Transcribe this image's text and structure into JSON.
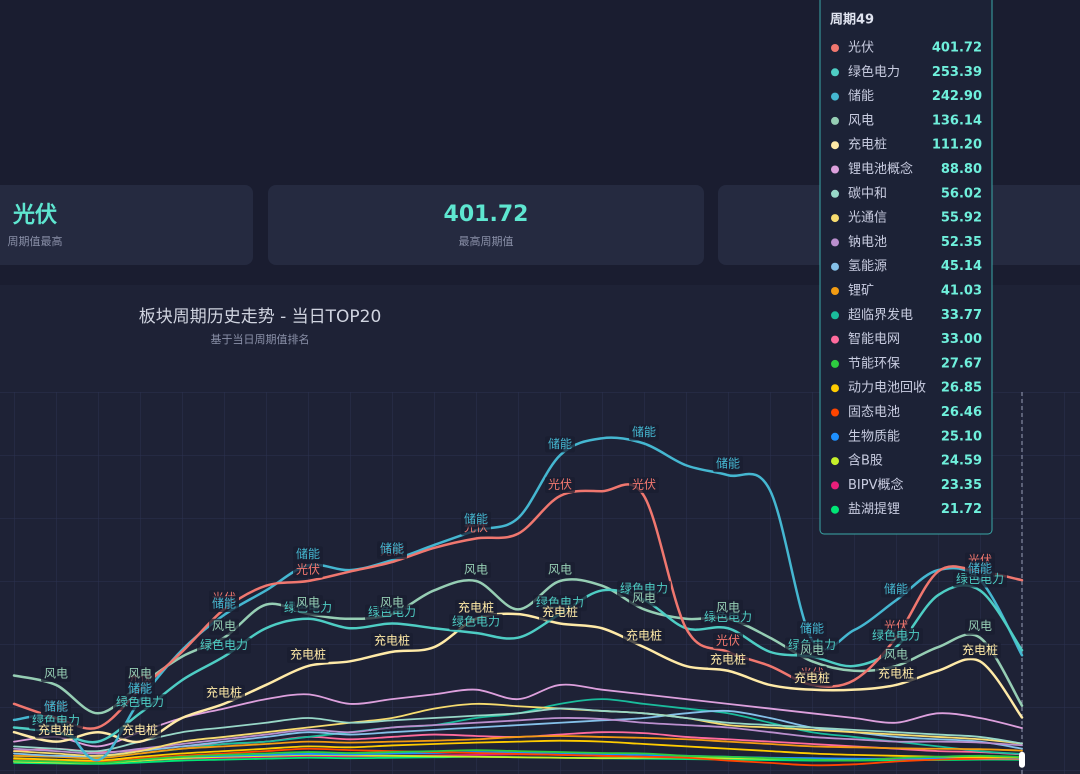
{
  "stats": [
    {
      "value": "光伏",
      "label": "周期值最高"
    },
    {
      "value": 401.72,
      "label": "最高周期值"
    }
  ],
  "chart_data": {
    "type": "line",
    "title": "板块周期历史走势 - 当日TOP20",
    "subtitle": "基于当日周期值排名",
    "categories": [
      null,
      null,
      null,
      null,
      null,
      null,
      null,
      null,
      null,
      null,
      null,
      null,
      null,
      null,
      null,
      null,
      null,
      null,
      null,
      null,
      null,
      null,
      null,
      null,
      "周期49"
    ],
    "ylim": [
      0,
      800
    ],
    "series": [
      {
        "name": "光伏",
        "color": "#f0776f",
        "values": [
          140,
          110,
          90,
          170,
          250,
          340,
          390,
          400,
          420,
          440,
          470,
          490,
          500,
          580,
          590,
          580,
          300,
          250,
          220,
          180,
          190,
          280,
          420,
          420,
          401.72
        ]
      },
      {
        "name": "绿色电力",
        "color": "#4ecdc4",
        "values": [
          90,
          80,
          60,
          120,
          190,
          240,
          300,
          320,
          300,
          310,
          300,
          290,
          280,
          330,
          380,
          360,
          300,
          300,
          250,
          240,
          220,
          260,
          370,
          380,
          253.39
        ]
      },
      {
        "name": "储能",
        "color": "#45b7d1",
        "values": [
          106,
          110,
          21,
          148,
          254,
          328,
          380,
          433,
          423,
          444,
          476,
          507,
          533,
          666,
          702,
          691,
          645,
          624,
          592,
          275,
          296,
          359,
          423,
          402,
          242.9
        ]
      },
      {
        "name": "风电",
        "color": "#96ceb4",
        "values": [
          200,
          180,
          120,
          180,
          240,
          280,
          350,
          330,
          320,
          330,
          380,
          400,
          340,
          400,
          390,
          340,
          320,
          320,
          280,
          230,
          210,
          220,
          260,
          280,
          136.14
        ]
      },
      {
        "name": "充电桩",
        "color": "#ffeaa7",
        "values": [
          80,
          60,
          80,
          60,
          110,
          140,
          180,
          220,
          230,
          250,
          260,
          320,
          330,
          310,
          300,
          260,
          220,
          210,
          180,
          170,
          170,
          180,
          210,
          230,
          111.2
        ]
      },
      {
        "name": "锂电池概念",
        "color": "#dda0dd",
        "values": [
          60,
          70,
          50,
          80,
          110,
          130,
          150,
          160,
          140,
          150,
          160,
          170,
          150,
          180,
          170,
          160,
          150,
          140,
          130,
          120,
          110,
          100,
          120,
          110,
          88.8
        ]
      },
      {
        "name": "碳中和",
        "color": "#98d8c8",
        "values": [
          50,
          45,
          40,
          60,
          80,
          90,
          100,
          110,
          100,
          105,
          110,
          115,
          120,
          130,
          125,
          120,
          110,
          100,
          95,
          90,
          85,
          80,
          75,
          70,
          56.02
        ]
      },
      {
        "name": "光通信",
        "color": "#f7dc6f",
        "values": [
          40,
          35,
          30,
          40,
          60,
          70,
          80,
          90,
          100,
          110,
          130,
          140,
          135,
          130,
          125,
          120,
          110,
          95,
          90,
          85,
          80,
          75,
          70,
          65,
          55.92
        ]
      },
      {
        "name": "钠电池",
        "color": "#bb8fce",
        "values": [
          45,
          40,
          35,
          45,
          55,
          65,
          75,
          85,
          80,
          90,
          95,
          100,
          105,
          110,
          108,
          100,
          95,
          90,
          80,
          70,
          65,
          60,
          60,
          58,
          52.35
        ]
      },
      {
        "name": "氢能源",
        "color": "#85c1e9",
        "values": [
          35,
          30,
          30,
          40,
          50,
          60,
          70,
          80,
          75,
          80,
          85,
          90,
          95,
          100,
          105,
          110,
          120,
          125,
          110,
          90,
          80,
          70,
          65,
          60,
          45.14
        ]
      },
      {
        "name": "锂矿",
        "color": "#f39c12",
        "values": [
          30,
          28,
          25,
          35,
          45,
          50,
          55,
          60,
          58,
          60,
          62,
          65,
          70,
          72,
          70,
          68,
          65,
          60,
          55,
          50,
          48,
          46,
          45,
          44,
          41.03
        ]
      },
      {
        "name": "超临界发电",
        "color": "#1abc9c",
        "values": [
          30,
          28,
          26,
          35,
          45,
          55,
          60,
          70,
          80,
          90,
          95,
          110,
          120,
          140,
          150,
          140,
          130,
          120,
          100,
          80,
          70,
          60,
          50,
          40,
          33.77
        ]
      },
      {
        "name": "智能电网",
        "color": "#ff6b9d",
        "values": [
          40,
          45,
          38,
          42,
          50,
          55,
          60,
          70,
          65,
          70,
          75,
          72,
          70,
          75,
          80,
          78,
          70,
          65,
          60,
          55,
          50,
          45,
          40,
          38,
          33.0
        ]
      },
      {
        "name": "节能环保",
        "color": "#2ecc40",
        "values": [
          20,
          18,
          15,
          22,
          28,
          32,
          35,
          38,
          36,
          38,
          40,
          42,
          40,
          38,
          36,
          35,
          30,
          28,
          25,
          22,
          20,
          25,
          28,
          30,
          27.67
        ]
      },
      {
        "name": "动力电池回收",
        "color": "#ffcc00",
        "values": [
          25,
          22,
          20,
          28,
          35,
          40,
          45,
          50,
          48,
          52,
          55,
          58,
          60,
          62,
          60,
          55,
          50,
          45,
          40,
          35,
          32,
          30,
          28,
          27,
          26.85
        ]
      },
      {
        "name": "固态电池",
        "color": "#ff4500",
        "values": [
          22,
          20,
          18,
          24,
          30,
          35,
          40,
          45,
          42,
          40,
          38,
          36,
          34,
          32,
          30,
          28,
          26,
          20,
          15,
          10,
          12,
          18,
          22,
          25,
          26.46
        ]
      },
      {
        "name": "生物质能",
        "color": "#1e90ff",
        "values": [
          20,
          18,
          16,
          22,
          28,
          30,
          32,
          34,
          33,
          35,
          36,
          38,
          37,
          36,
          34,
          32,
          30,
          28,
          26,
          25,
          24,
          24,
          25,
          25,
          25.1
        ]
      },
      {
        "name": "含B股",
        "color": "#c6f02a",
        "values": [
          18,
          16,
          15,
          20,
          25,
          28,
          30,
          32,
          31,
          30,
          29,
          28,
          27,
          26,
          25,
          26,
          27,
          25,
          24,
          24,
          23,
          24,
          24,
          24,
          24.59
        ]
      },
      {
        "name": "BIPV概念",
        "color": "#e91e7a",
        "values": [
          18,
          17,
          16,
          20,
          24,
          26,
          28,
          30,
          29,
          30,
          31,
          32,
          33,
          32,
          30,
          28,
          27,
          26,
          25,
          24,
          23,
          23,
          23,
          23,
          23.35
        ]
      },
      {
        "name": "盐湖提锂",
        "color": "#00e676",
        "values": [
          15,
          14,
          13,
          16,
          20,
          22,
          24,
          26,
          25,
          26,
          27,
          28,
          27,
          26,
          25,
          24,
          23,
          22,
          21,
          20,
          20,
          21,
          21,
          22,
          21.72
        ]
      }
    ],
    "tooltip_values": [
      "401.72",
      "253.39",
      "242.90",
      "136.14",
      "111.20",
      "88.80",
      "56.02",
      "55.92",
      "52.35",
      "45.14",
      "41.03",
      "33.77",
      "33.00",
      "27.67",
      "26.85",
      "26.46",
      "25.10",
      "24.59",
      "23.35",
      "21.72"
    ]
  }
}
